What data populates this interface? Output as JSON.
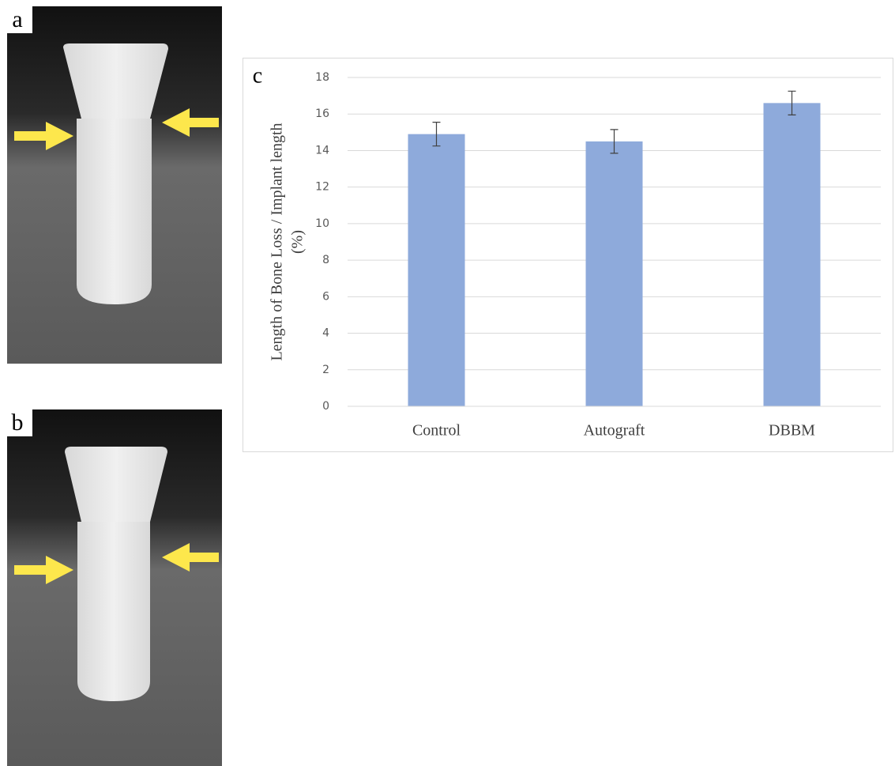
{
  "panel_labels": [
    "a",
    "b",
    "c"
  ],
  "chart_data": {
    "type": "bar",
    "ylabel": [
      "Length of Bone Loss / Implant length",
      "(%)"
    ],
    "categories": [
      "Control",
      "Autograft",
      "DBBM"
    ],
    "values": [
      14.9,
      14.5,
      16.6
    ],
    "errors": [
      0.65,
      0.65,
      0.65
    ],
    "color": "#8eaadb",
    "ylim": [
      0,
      18
    ],
    "yticks": [
      0,
      2,
      4,
      6,
      8,
      10,
      12,
      14,
      16,
      18
    ],
    "grid": true
  }
}
